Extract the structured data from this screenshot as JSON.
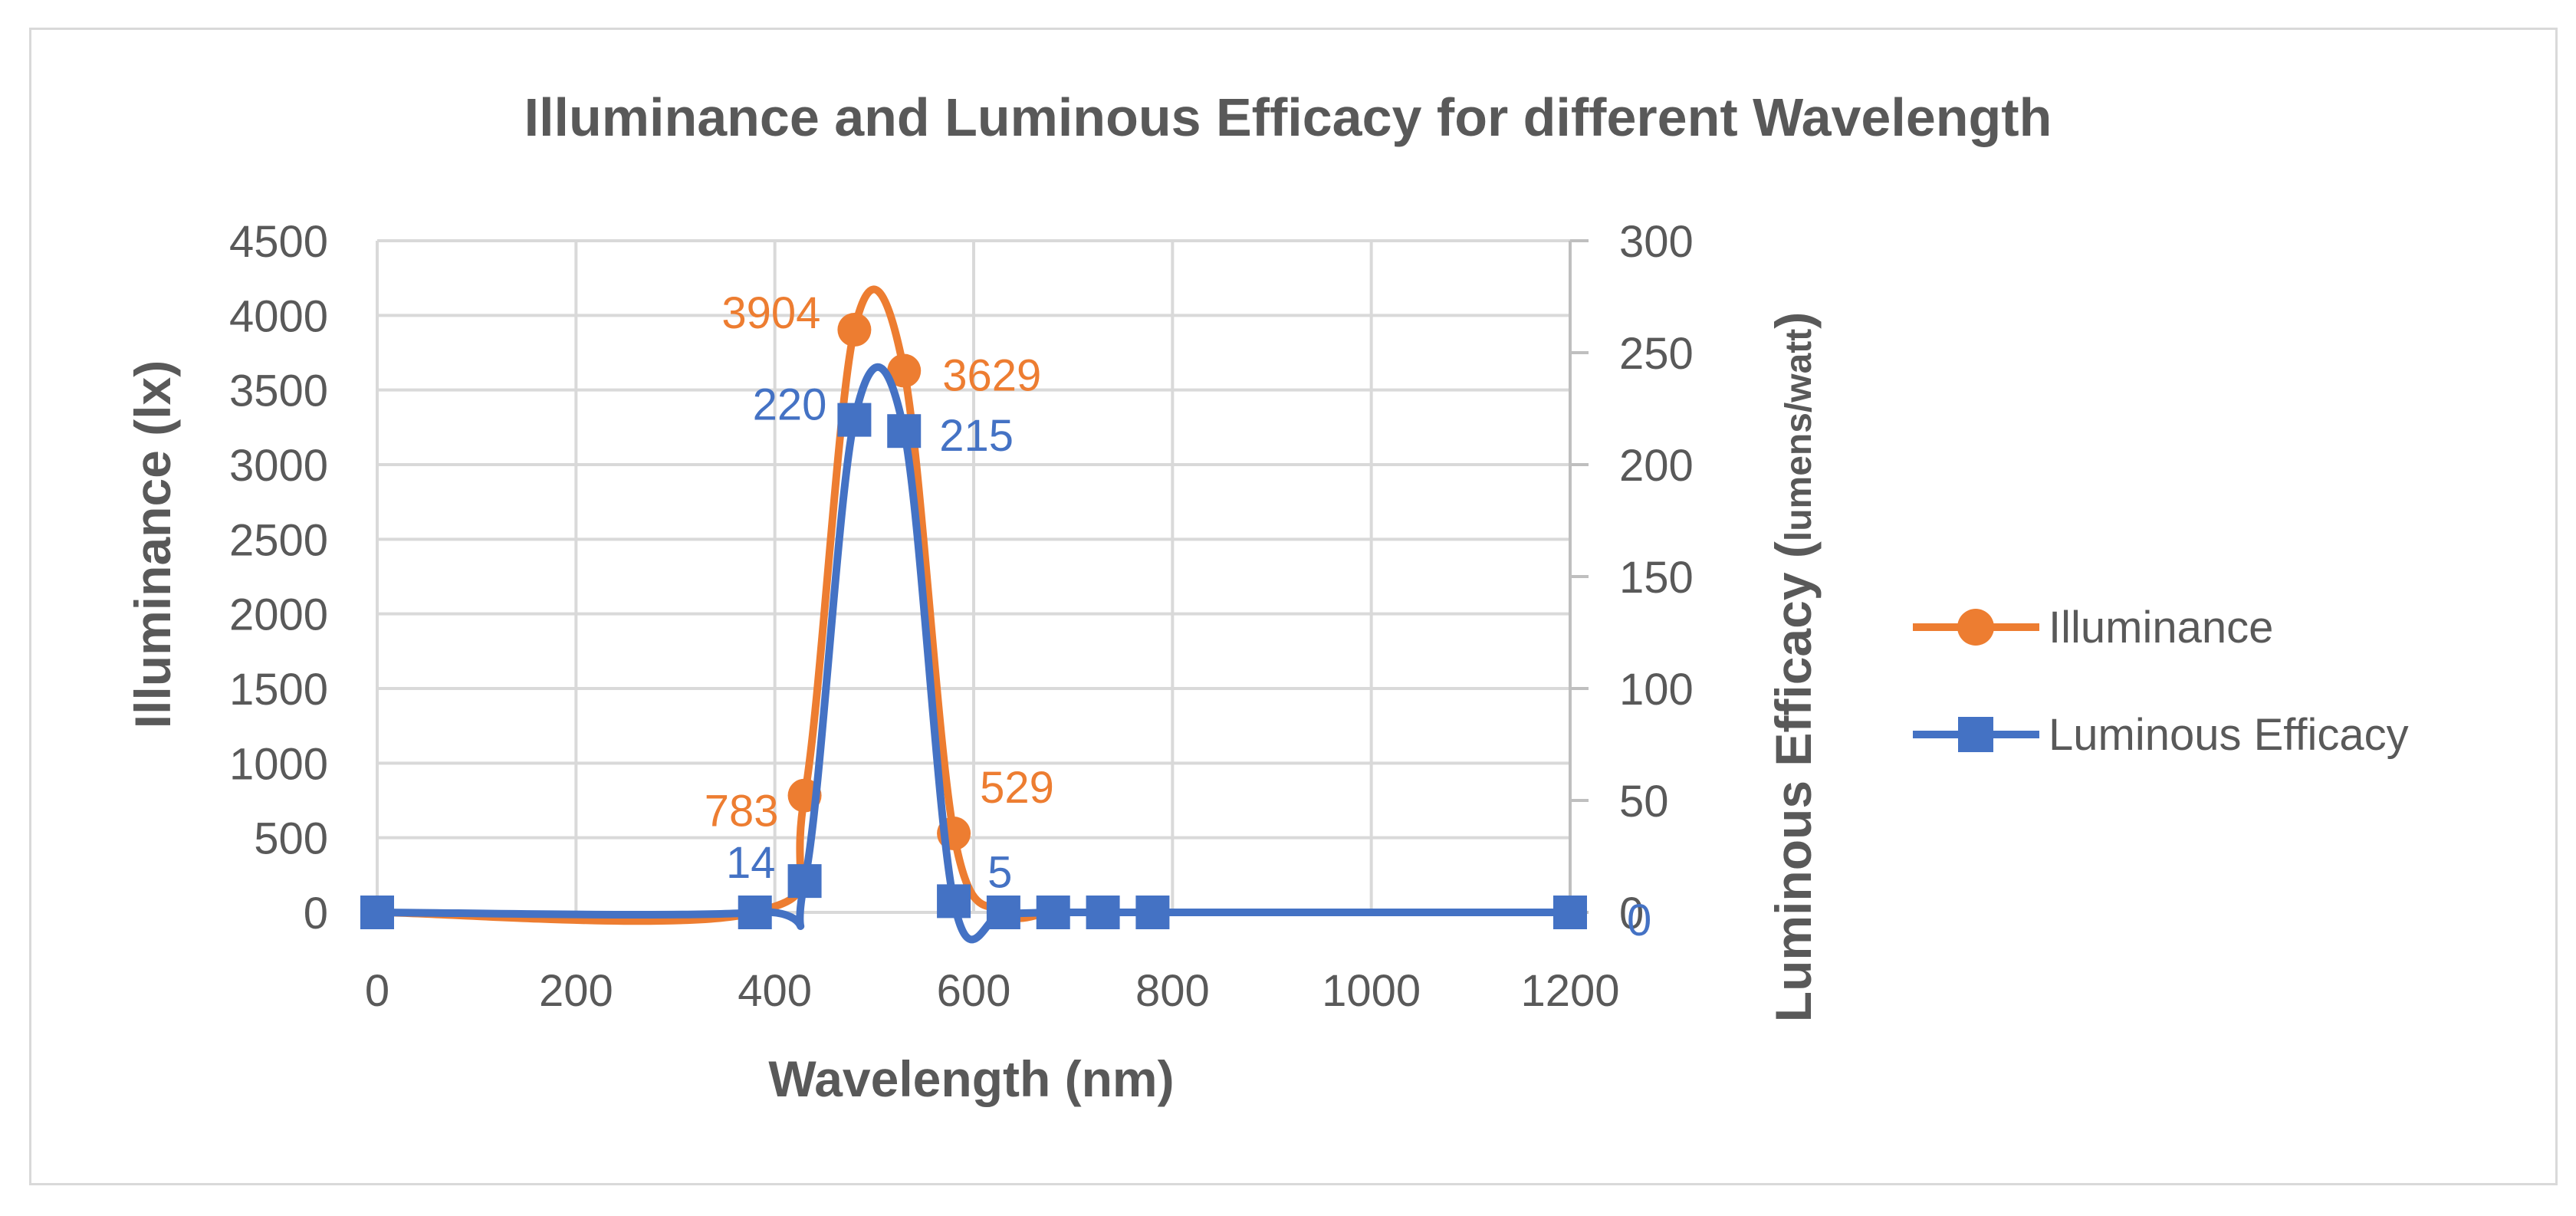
{
  "chart_data": {
    "type": "scatter",
    "title": "Illuminance and Luminous Efficacy for different Wavelength",
    "xlabel": "Wavelength (nm)",
    "ylabel": "Illuminance (lx)",
    "y2label_main": "Luminous Efficacy (",
    "y2label_units": "lumens/watt",
    "y2label_end": ")",
    "xlim": [
      0,
      1200
    ],
    "ylim": [
      0,
      4500
    ],
    "y2lim": [
      0,
      300
    ],
    "x_ticks": [
      "0",
      "200",
      "400",
      "600",
      "800",
      "1000",
      "1200"
    ],
    "y_ticks": [
      "0",
      "500",
      "1000",
      "1500",
      "2000",
      "2500",
      "3000",
      "3500",
      "4000",
      "4500"
    ],
    "y2_ticks": [
      "0",
      "50",
      "100",
      "150",
      "200",
      "250",
      "300"
    ],
    "grid": true,
    "legend_position": "right",
    "series": [
      {
        "name": "Illuminance",
        "axis": "left",
        "marker": "circle",
        "color": "#ED7D31",
        "x": [
          0,
          380,
          430,
          480,
          530,
          580,
          630,
          680,
          730,
          780,
          1200
        ],
        "y": [
          0,
          0,
          783,
          3904,
          3629,
          529,
          0,
          0,
          0,
          0,
          0
        ],
        "labels": [
          {
            "index": 2,
            "text": "783"
          },
          {
            "index": 3,
            "text": "3904"
          },
          {
            "index": 4,
            "text": "3629"
          },
          {
            "index": 5,
            "text": "529"
          }
        ]
      },
      {
        "name": "Luminous Efficacy",
        "axis": "right",
        "marker": "square",
        "color": "#4472C4",
        "x": [
          0,
          380,
          430,
          480,
          530,
          580,
          630,
          680,
          730,
          780,
          1200
        ],
        "y": [
          0,
          0,
          14,
          220,
          215,
          5,
          0,
          0,
          0,
          0,
          0
        ],
        "labels": [
          {
            "index": 2,
            "text": "14"
          },
          {
            "index": 3,
            "text": "220"
          },
          {
            "index": 4,
            "text": "215"
          },
          {
            "index": 5,
            "text": "5"
          },
          {
            "index": 10,
            "text": "0"
          }
        ]
      }
    ]
  }
}
